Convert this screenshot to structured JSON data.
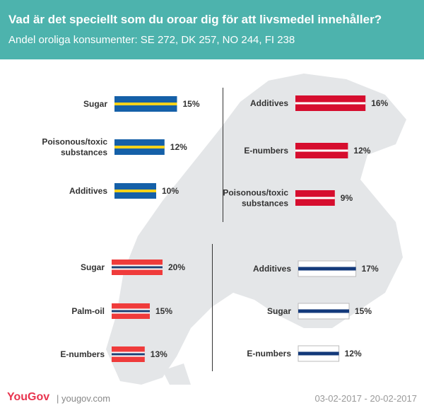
{
  "header": {
    "title": "Vad är det speciellt som du oroar dig för att livsmedel innehåller?",
    "subtitle": "Andel oroliga konsumenter: SE 272, DK 257, NO 244, FI 238"
  },
  "footer": {
    "logo": "YouGov",
    "url": "| yougov.com",
    "date_range": "03-02-2017 - 20-02-2017"
  },
  "chart_data": [
    {
      "type": "bar",
      "flag": "SE",
      "colors": {
        "base": "#1560a8",
        "stripe": "#f6d21a"
      },
      "categories": [
        "Sugar",
        "Poisonous/toxic\nsubstances",
        "Additives"
      ],
      "values": [
        15,
        12,
        10
      ],
      "labels": [
        "15%",
        "12%",
        "10%"
      ]
    },
    {
      "type": "bar",
      "flag": "DK",
      "colors": {
        "base": "#d60d2e",
        "stripe": "#ffffff"
      },
      "categories": [
        "Additives",
        "E-numbers",
        "Poisonous/toxic\nsubstances"
      ],
      "values": [
        16,
        12,
        9
      ],
      "labels": [
        "16%",
        "12%",
        "9%"
      ]
    },
    {
      "type": "bar",
      "flag": "NO",
      "colors": {
        "base": "#ef3b3b",
        "stripe": "#ffffff",
        "cross": "#1e3f73"
      },
      "categories": [
        "Sugar",
        "Palm-oil",
        "E-numbers"
      ],
      "values": [
        20,
        15,
        13
      ],
      "labels": [
        "20%",
        "15%",
        "13%"
      ]
    },
    {
      "type": "bar",
      "flag": "FI",
      "colors": {
        "base": "#ffffff",
        "stripe": "#13397a",
        "border": "#bbbbbb"
      },
      "categories": [
        "Additives",
        "Sugar",
        "E-numbers"
      ],
      "values": [
        17,
        15,
        12
      ],
      "labels": [
        "17%",
        "15%",
        "12%"
      ]
    }
  ]
}
